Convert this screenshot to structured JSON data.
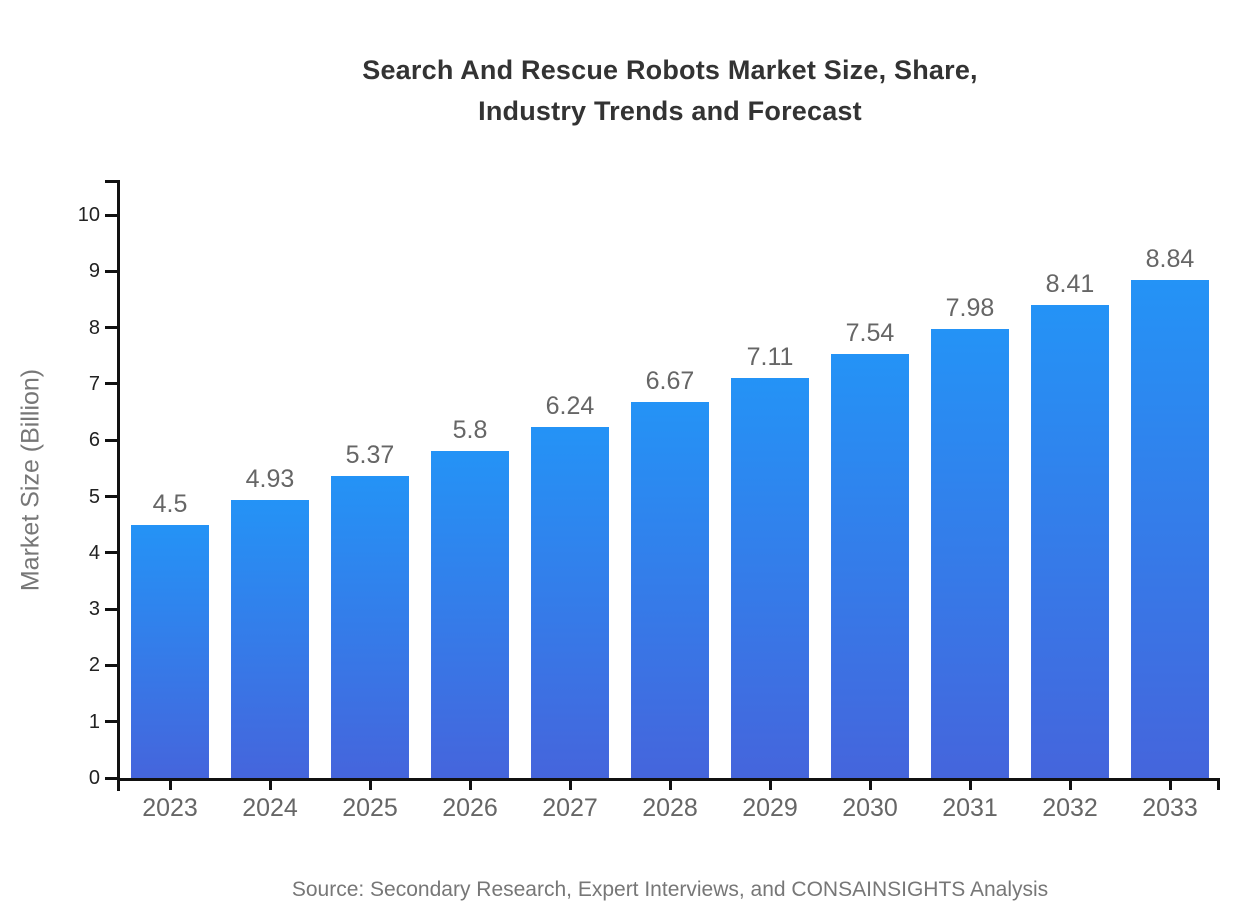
{
  "title_lines": [
    "Search And Rescue Robots Market Size, Share,",
    "Industry Trends and Forecast"
  ],
  "source_note": "Source: Secondary Research, Expert Interviews, and CONSAINSIGHTS Analysis",
  "chart_data": {
    "type": "bar",
    "title": "Search And Rescue Robots Market Size, Share, Industry Trends and Forecast",
    "categories": [
      "2023",
      "2024",
      "2025",
      "2026",
      "2027",
      "2028",
      "2029",
      "2030",
      "2031",
      "2032",
      "2033"
    ],
    "values": [
      4.5,
      4.93,
      5.37,
      5.8,
      6.24,
      6.67,
      7.11,
      7.54,
      7.98,
      8.41,
      8.84
    ],
    "value_labels": [
      "4.5",
      "4.93",
      "5.37",
      "5.8",
      "6.24",
      "6.67",
      "7.11",
      "7.54",
      "7.98",
      "8.41",
      "8.84"
    ],
    "xlabel": "",
    "ylabel": "Market Size (Billion)",
    "ylim": [
      0,
      10
    ],
    "yticks": [
      0,
      1,
      2,
      3,
      4,
      5,
      6,
      7,
      8,
      9,
      10
    ],
    "grid": false,
    "legend": null,
    "colors": {
      "bar_gradient_top": "#2493F6",
      "bar_gradient_bottom": "#4565DC",
      "axis": "#111111",
      "y_tick_label": "#222222",
      "category_label": "#666666",
      "value_label": "#666666",
      "title": "#333333",
      "source": "#777777"
    }
  }
}
